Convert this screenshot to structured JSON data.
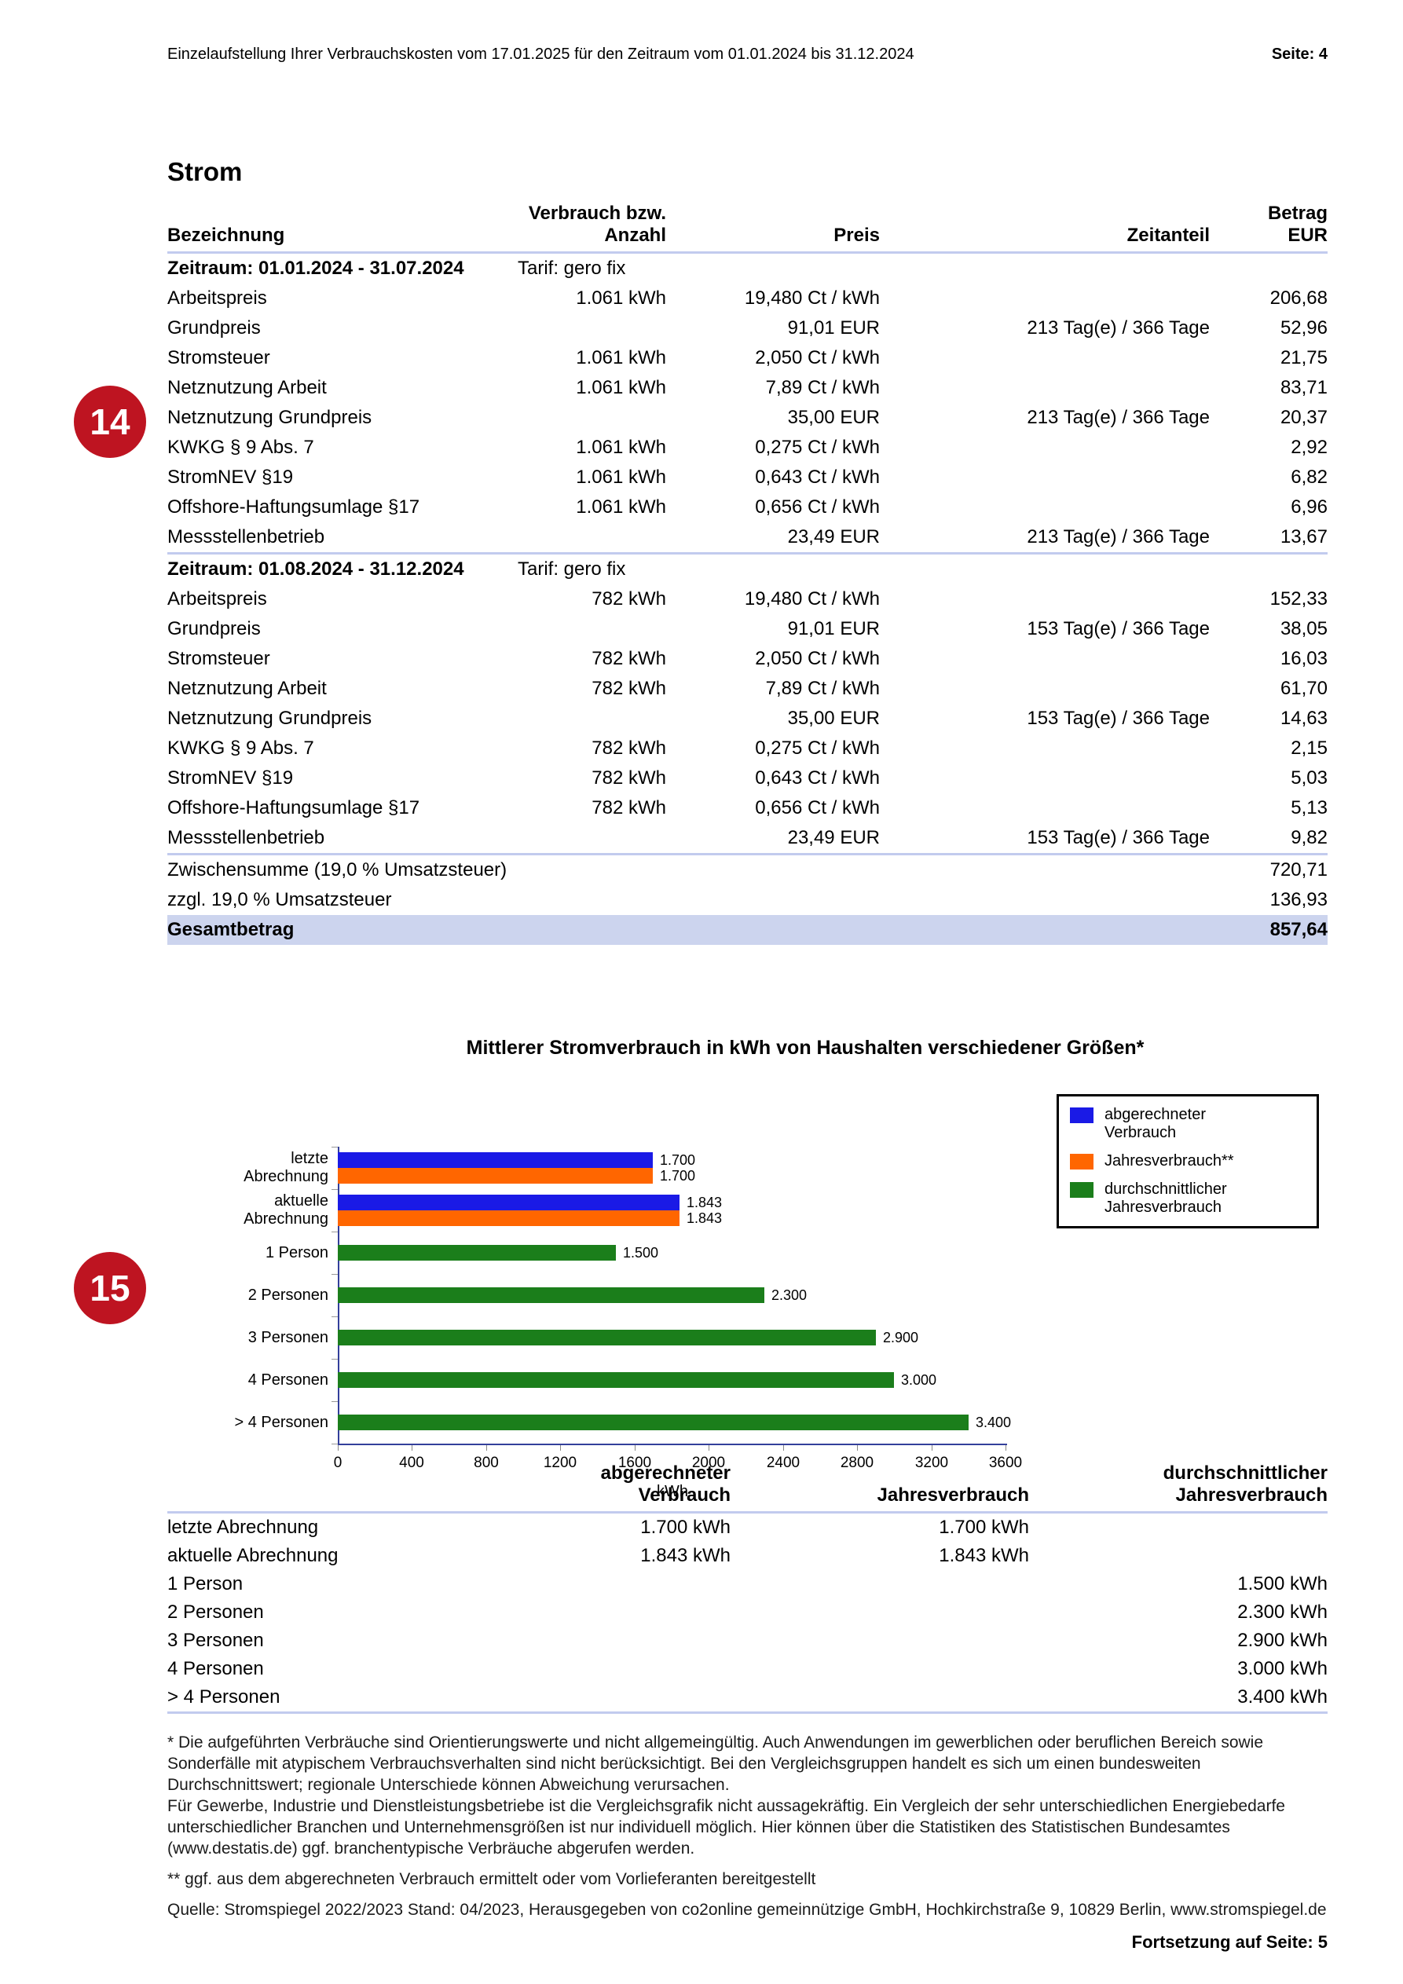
{
  "page": {
    "header_left": "Einzelaufstellung Ihrer Verbrauchskosten vom 17.01.2025 für den Zeitraum vom 01.01.2024 bis 31.12.2024",
    "header_right": "Seite: 4",
    "footer_right": "Fortsetzung auf Seite: 5",
    "badges": {
      "table": "14",
      "chart": "15"
    }
  },
  "colors": {
    "badge_red": "#be1421",
    "rule_blue": "#c2cbee",
    "highlight_row": "#ccd4ee",
    "series_blue": "#1a1ae6",
    "series_orange": "#ff6600",
    "series_green": "#1b7e1b",
    "axis_navy": "#333f9b"
  },
  "cost_table": {
    "title": "Strom",
    "columns": [
      "Bezeichnung",
      "Verbrauch bzw.\nAnzahl",
      "Preis",
      "Zeitanteil",
      "Betrag\nEUR"
    ],
    "sections": [
      {
        "period_label": "Zeitraum: 01.01.2024 - 31.07.2024",
        "tariff": "Tarif: gero fix",
        "rows": [
          {
            "label": "Arbeitspreis",
            "qty": "1.061 kWh",
            "price": "19,480 Ct / kWh",
            "share": "",
            "amount": "206,68"
          },
          {
            "label": "Grundpreis",
            "qty": "",
            "price": "91,01 EUR",
            "share": "213 Tag(e) / 366 Tage",
            "amount": "52,96"
          },
          {
            "label": "Stromsteuer",
            "qty": "1.061 kWh",
            "price": "2,050 Ct / kWh",
            "share": "",
            "amount": "21,75"
          },
          {
            "label": "Netznutzung Arbeit",
            "qty": "1.061 kWh",
            "price": "7,89 Ct / kWh",
            "share": "",
            "amount": "83,71"
          },
          {
            "label": "Netznutzung Grundpreis",
            "qty": "",
            "price": "35,00 EUR",
            "share": "213 Tag(e) / 366 Tage",
            "amount": "20,37"
          },
          {
            "label": "KWKG § 9 Abs. 7",
            "qty": "1.061 kWh",
            "price": "0,275 Ct / kWh",
            "share": "",
            "amount": "2,92"
          },
          {
            "label": "StromNEV §19",
            "qty": "1.061 kWh",
            "price": "0,643 Ct / kWh",
            "share": "",
            "amount": "6,82"
          },
          {
            "label": "Offshore-Haftungsumlage §17",
            "qty": "1.061 kWh",
            "price": "0,656 Ct / kWh",
            "share": "",
            "amount": "6,96"
          },
          {
            "label": "Messstellenbetrieb",
            "qty": "",
            "price": "23,49 EUR",
            "share": "213 Tag(e) / 366 Tage",
            "amount": "13,67"
          }
        ]
      },
      {
        "period_label": "Zeitraum: 01.08.2024 - 31.12.2024",
        "tariff": "Tarif: gero fix",
        "rows": [
          {
            "label": "Arbeitspreis",
            "qty": "782 kWh",
            "price": "19,480 Ct / kWh",
            "share": "",
            "amount": "152,33"
          },
          {
            "label": "Grundpreis",
            "qty": "",
            "price": "91,01 EUR",
            "share": "153 Tag(e) / 366 Tage",
            "amount": "38,05"
          },
          {
            "label": "Stromsteuer",
            "qty": "782 kWh",
            "price": "2,050 Ct / kWh",
            "share": "",
            "amount": "16,03"
          },
          {
            "label": "Netznutzung Arbeit",
            "qty": "782 kWh",
            "price": "7,89 Ct / kWh",
            "share": "",
            "amount": "61,70"
          },
          {
            "label": "Netznutzung Grundpreis",
            "qty": "",
            "price": "35,00 EUR",
            "share": "153 Tag(e) / 366 Tage",
            "amount": "14,63"
          },
          {
            "label": "KWKG § 9 Abs. 7",
            "qty": "782 kWh",
            "price": "0,275 Ct / kWh",
            "share": "",
            "amount": "2,15"
          },
          {
            "label": "StromNEV §19",
            "qty": "782 kWh",
            "price": "0,643 Ct / kWh",
            "share": "",
            "amount": "5,03"
          },
          {
            "label": "Offshore-Haftungsumlage §17",
            "qty": "782 kWh",
            "price": "0,656 Ct / kWh",
            "share": "",
            "amount": "5,13"
          },
          {
            "label": "Messstellenbetrieb",
            "qty": "",
            "price": "23,49 EUR",
            "share": "153 Tag(e) / 366 Tage",
            "amount": "9,82"
          }
        ]
      }
    ],
    "totals": [
      {
        "label": "Zwischensumme (19,0 % Umsatzsteuer)",
        "amount": "720,71",
        "highlight": false
      },
      {
        "label": "zzgl. 19,0 % Umsatzsteuer",
        "amount": "136,93",
        "highlight": false
      },
      {
        "label": "Gesamtbetrag",
        "amount": "857,64",
        "highlight": true
      }
    ]
  },
  "chart_data": {
    "type": "bar",
    "orientation": "horizontal",
    "title": "Mittlerer Stromverbrauch in kWh von Haushalten verschiedener Größen*",
    "categories": [
      "letzte Abrechnung",
      "aktuelle Abrechnung",
      "1 Person",
      "2 Personen",
      "3 Personen",
      "4 Personen",
      "> 4 Personen"
    ],
    "series": [
      {
        "name": "abgerechneter Verbrauch",
        "legend_label": "abgerechneter\nVerbrauch",
        "color": "#1a1ae6",
        "values": [
          1700,
          1843,
          null,
          null,
          null,
          null,
          null
        ]
      },
      {
        "name": "Jahresverbrauch**",
        "legend_label": "Jahresverbrauch**",
        "color": "#ff6600",
        "values": [
          1700,
          1843,
          null,
          null,
          null,
          null,
          null
        ]
      },
      {
        "name": "durchschnittlicher Jahresverbrauch",
        "legend_label": "durchschnittlicher\nJahresverbrauch",
        "color": "#1b7e1b",
        "values": [
          null,
          null,
          1500,
          2300,
          2900,
          3000,
          3400
        ]
      }
    ],
    "bar_labels": [
      [
        "1.700",
        "1.700"
      ],
      [
        "1.843",
        "1.843"
      ],
      [
        "1.500"
      ],
      [
        "2.300"
      ],
      [
        "2.900"
      ],
      [
        "3.000"
      ],
      [
        "3.400"
      ]
    ],
    "xlabel": "kWh",
    "xlim": [
      0,
      3600
    ],
    "xticks": [
      0,
      400,
      800,
      1200,
      1600,
      2000,
      2400,
      2800,
      3200,
      3600
    ],
    "grid": false,
    "legend_position": "top-right"
  },
  "comparison_table": {
    "columns": [
      "",
      "abgerechneter\nVerbrauch",
      "Jahresverbrauch",
      "durchschnittlicher\nJahresverbrauch"
    ],
    "rows": [
      {
        "label": "letzte Abrechnung",
        "abgerechnet": "1.700 kWh",
        "jahres": "1.700 kWh",
        "durchschnitt": ""
      },
      {
        "label": "aktuelle Abrechnung",
        "abgerechnet": "1.843 kWh",
        "jahres": "1.843 kWh",
        "durchschnitt": ""
      },
      {
        "label": "1 Person",
        "abgerechnet": "",
        "jahres": "",
        "durchschnitt": "1.500 kWh"
      },
      {
        "label": "2 Personen",
        "abgerechnet": "",
        "jahres": "",
        "durchschnitt": "2.300 kWh"
      },
      {
        "label": "3 Personen",
        "abgerechnet": "",
        "jahres": "",
        "durchschnitt": "2.900 kWh"
      },
      {
        "label": "4 Personen",
        "abgerechnet": "",
        "jahres": "",
        "durchschnitt": "3.000 kWh"
      },
      {
        "label": "> 4 Personen",
        "abgerechnet": "",
        "jahres": "",
        "durchschnitt": "3.400 kWh"
      }
    ]
  },
  "footnotes": [
    {
      "text": "* Die aufgeführten Verbräuche sind Orientierungswerte und nicht allgemeingültig. Auch Anwendungen im gewerblichen oder beruflichen Bereich sowie Sonderfälle mit atypischem Verbrauchsverhalten sind nicht berücksichtigt. Bei den Vergleichsgruppen handelt es sich um einen bundesweiten Durchschnittswert; regionale Unterschiede können Abweichung verursachen.",
      "gap": false
    },
    {
      "text": "Für Gewerbe, Industrie und Dienstleistungsbetriebe ist die Vergleichsgrafik nicht aussagekräftig. Ein Vergleich der sehr unterschiedlichen Energiebedarfe unterschiedlicher Branchen und Unternehmensgrößen ist nur individuell möglich. Hier können über die Statistiken des Statistischen Bundesamtes (www.destatis.de) ggf. branchentypische Verbräuche abgerufen werden.",
      "gap": false
    },
    {
      "text": "** ggf. aus dem abgerechneten Verbrauch ermittelt oder vom Vorlieferanten bereitgestellt",
      "gap": true
    },
    {
      "text": "Quelle: Stromspiegel 2022/2023 Stand: 04/2023, Herausgegeben von co2online gemeinnützige GmbH, Hochkirchstraße 9, 10829 Berlin, www.stromspiegel.de",
      "gap": true
    }
  ]
}
